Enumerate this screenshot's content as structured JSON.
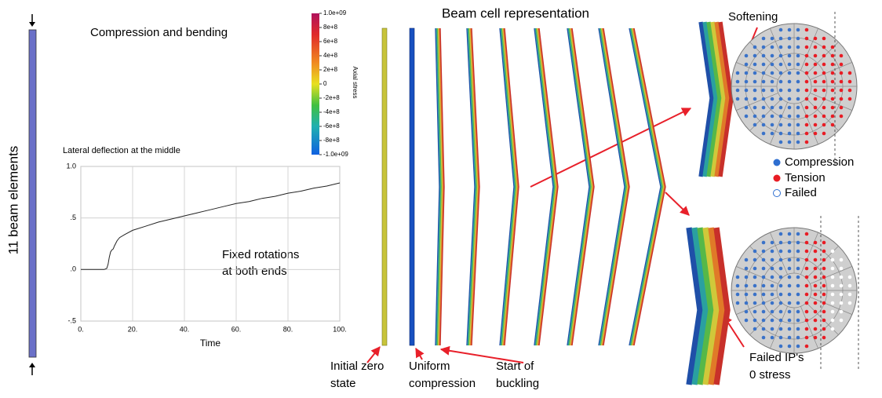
{
  "beam_label": "11 beam elements",
  "load_label": "Compression and bending",
  "colorbar": {
    "title": "Axial stress",
    "ticks": [
      {
        "value": 1000000000,
        "label": "1.0e+09"
      },
      {
        "value": 800000000,
        "label": "8e+8"
      },
      {
        "value": 600000000,
        "label": "6e+8"
      },
      {
        "value": 400000000,
        "label": "4e+8"
      },
      {
        "value": 200000000,
        "label": "2e+8"
      },
      0,
      {
        "value": -200000000,
        "label": "-2e+8"
      },
      {
        "value": -400000000,
        "label": "-4e+8"
      },
      {
        "value": -600000000,
        "label": "-6e+8"
      },
      {
        "value": -800000000,
        "label": "-8e+8"
      },
      {
        "value": -1000000000,
        "label": "-1.0e+09"
      }
    ]
  },
  "chart_data": {
    "type": "line",
    "title": "Lateral deflection at the middle",
    "x_label": "Time",
    "x": [
      0,
      5,
      9,
      10,
      10.5,
      11,
      11.5,
      12,
      12.5,
      13,
      14,
      15,
      17,
      20,
      25,
      30,
      35,
      40,
      45,
      50,
      55,
      60,
      65,
      70,
      75,
      80,
      85,
      90,
      95,
      100
    ],
    "series": [
      {
        "color": "#222222",
        "values": [
          0,
          0,
          0,
          0.01,
          0.05,
          0.12,
          0.17,
          0.19,
          0.2,
          0.23,
          0.28,
          0.31,
          0.34,
          0.38,
          0.42,
          0.46,
          0.49,
          0.52,
          0.55,
          0.58,
          0.61,
          0.64,
          0.66,
          0.69,
          0.71,
          0.74,
          0.76,
          0.79,
          0.81,
          0.84
        ]
      }
    ],
    "xlim": [
      0,
      100
    ],
    "ylim": [
      -0.5,
      1.0
    ],
    "xticks": [
      {
        "value": 0,
        "label": "0."
      },
      {
        "value": 20,
        "label": "20."
      },
      {
        "value": 40,
        "label": "40."
      },
      {
        "value": 60,
        "label": "60."
      },
      {
        "value": 80,
        "label": "80."
      },
      {
        "value": 100,
        "label": "100."
      }
    ],
    "yticks": [
      {
        "value": -0.5,
        "label": "-.5"
      },
      {
        "value": 0,
        "label": ".0"
      },
      {
        "value": 0.5,
        "label": ".5"
      },
      {
        "value": 1.0,
        "label": "1.0"
      }
    ],
    "grid": true,
    "annotation": [
      "Fixed rotations",
      "at both ends"
    ]
  },
  "cell_title": "Beam cell representation",
  "softening": "Softening",
  "legend": [
    "Compression",
    "Tension",
    "Failed"
  ],
  "failed_note": [
    "Failed IP's",
    "0 stress"
  ],
  "stages": [
    [
      "Initial zero",
      "state"
    ],
    [
      "Uniform",
      "compression"
    ],
    [
      "Start of",
      "buckling"
    ]
  ]
}
